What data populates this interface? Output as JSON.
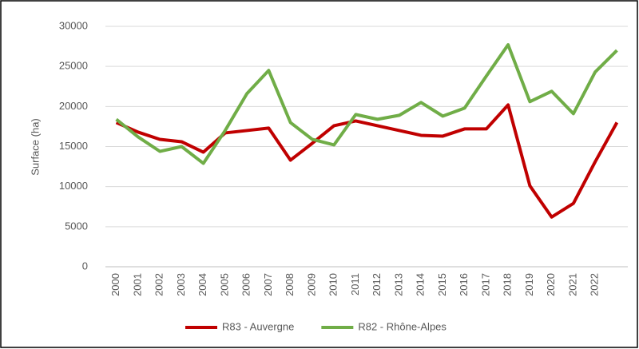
{
  "chart_data": {
    "type": "line",
    "y_label": "Surface (ha)",
    "categories": [
      "2000",
      "2001",
      "2002",
      "2003",
      "2004",
      "2005",
      "2006",
      "2007",
      "2008",
      "2009",
      "2010",
      "2011",
      "2012",
      "2013",
      "2014",
      "2015",
      "2016",
      "2017",
      "2018",
      "2019",
      "2020",
      "2021",
      "2022",
      null
    ],
    "series": [
      {
        "name": "R83 - Auvergne",
        "color": "#c00000",
        "values": [
          18000,
          16800,
          15900,
          15600,
          14300,
          16700,
          17000,
          17300,
          13300,
          15400,
          17600,
          18200,
          17600,
          17000,
          16400,
          16300,
          17200,
          17200,
          20200,
          10100,
          6200,
          7900,
          13100,
          18000
        ]
      },
      {
        "name": "R82 - Rhône-Alpes",
        "color": "#70ad47",
        "values": [
          18400,
          16200,
          14400,
          15000,
          12900,
          17000,
          21600,
          24500,
          18000,
          15900,
          15200,
          19000,
          18400,
          18900,
          20500,
          18800,
          19800,
          23800,
          27700,
          20600,
          21900,
          19100,
          24300,
          27000
        ]
      }
    ],
    "ylim": [
      0,
      30000
    ],
    "yticks": [
      0,
      5000,
      10000,
      15000,
      20000,
      25000,
      30000
    ],
    "grid": true,
    "legend": "bottom"
  }
}
